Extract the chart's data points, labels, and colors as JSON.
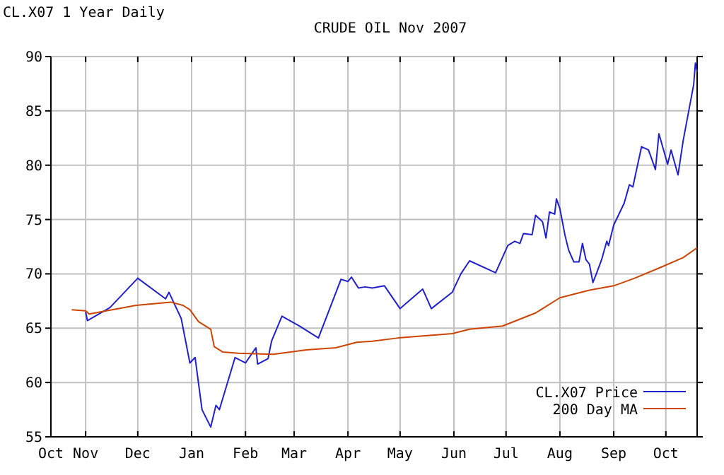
{
  "chart_data": {
    "type": "line",
    "title": "CRUDE OIL Nov 2007",
    "subtitle": "CL.X07 1 Year Daily",
    "xlim": [
      "2006-10-12",
      "2007-10-19"
    ],
    "xticks": [
      {
        "value": "2006-10-12",
        "label": "Oct"
      },
      {
        "value": "2006-11-01",
        "label": "Nov"
      },
      {
        "value": "2006-12-01",
        "label": "Dec"
      },
      {
        "value": "2007-01-01",
        "label": "Jan"
      },
      {
        "value": "2007-02-01",
        "label": "Feb"
      },
      {
        "value": "2007-03-01",
        "label": "Mar"
      },
      {
        "value": "2007-04-01",
        "label": "Apr"
      },
      {
        "value": "2007-05-01",
        "label": "May"
      },
      {
        "value": "2007-06-01",
        "label": "Jun"
      },
      {
        "value": "2007-07-01",
        "label": "Jul"
      },
      {
        "value": "2007-08-01",
        "label": "Aug"
      },
      {
        "value": "2007-09-01",
        "label": "Sep"
      },
      {
        "value": "2007-10-01",
        "label": "Oct"
      }
    ],
    "ylim": [
      55,
      90
    ],
    "yticks": [
      55,
      60,
      65,
      70,
      75,
      80,
      85,
      90
    ],
    "grid": true,
    "legend": "bottom right",
    "marker": "none",
    "line_style": "solid",
    "series": [
      {
        "name": "CL.X07 Price",
        "color": "#2020cc",
        "x": [
          "2006-11-01",
          "2006-11-02",
          "2006-11-15",
          "2006-12-01",
          "2006-12-17",
          "2006-12-19",
          "2006-12-21",
          "2006-12-26",
          "2006-12-31",
          "2007-01-03",
          "2007-01-07",
          "2007-01-12",
          "2007-01-15",
          "2007-01-17",
          "2007-01-26",
          "2007-02-01",
          "2007-02-07",
          "2007-02-08",
          "2007-02-14",
          "2007-02-16",
          "2007-02-22",
          "2007-03-04",
          "2007-03-15",
          "2007-03-28",
          "2007-04-01",
          "2007-04-03",
          "2007-04-07",
          "2007-04-11",
          "2007-04-15",
          "2007-04-22",
          "2007-05-01",
          "2007-05-14",
          "2007-05-19",
          "2007-05-31",
          "2007-06-05",
          "2007-06-10",
          "2007-06-25",
          "2007-07-02",
          "2007-07-06",
          "2007-07-09",
          "2007-07-11",
          "2007-07-16",
          "2007-07-18",
          "2007-07-22",
          "2007-07-24",
          "2007-07-26",
          "2007-07-29",
          "2007-07-30",
          "2007-08-01",
          "2007-08-04",
          "2007-08-06",
          "2007-08-09",
          "2007-08-12",
          "2007-08-14",
          "2007-08-16",
          "2007-08-18",
          "2007-08-20",
          "2007-08-22",
          "2007-08-25",
          "2007-08-28",
          "2007-08-29",
          "2007-09-01",
          "2007-09-07",
          "2007-09-10",
          "2007-09-12",
          "2007-09-17",
          "2007-09-21",
          "2007-09-25",
          "2007-09-27",
          "2007-10-02",
          "2007-10-04",
          "2007-10-08",
          "2007-10-11",
          "2007-10-15",
          "2007-10-17",
          "2007-10-18",
          "2007-10-19"
        ],
        "values": [
          66.5,
          65.7,
          66.9,
          69.6,
          67.7,
          68.3,
          67.6,
          65.9,
          61.8,
          62.3,
          57.5,
          55.9,
          57.9,
          57.5,
          62.3,
          61.8,
          63.2,
          61.7,
          62.2,
          63.8,
          66.1,
          65.2,
          64.1,
          69.5,
          69.3,
          69.7,
          68.7,
          68.8,
          68.7,
          68.9,
          66.8,
          68.6,
          66.8,
          68.3,
          70.0,
          71.2,
          70.1,
          72.6,
          73.0,
          72.8,
          73.7,
          73.6,
          75.4,
          74.8,
          73.3,
          75.7,
          75.5,
          76.9,
          76.0,
          73.5,
          72.2,
          71.1,
          71.1,
          72.8,
          71.3,
          70.9,
          69.2,
          70.0,
          71.3,
          73.0,
          72.6,
          74.5,
          76.5,
          78.2,
          78.0,
          81.7,
          81.4,
          79.6,
          82.9,
          80.1,
          81.4,
          79.1,
          82.3,
          85.7,
          87.4,
          89.4,
          88.6
        ]
      },
      {
        "name": "200 Day MA",
        "color": "#cc4400",
        "x": [
          "2006-10-24",
          "2006-11-01",
          "2006-11-03",
          "2006-11-30",
          "2006-12-20",
          "2006-12-27",
          "2006-12-31",
          "2007-01-05",
          "2007-01-12",
          "2007-01-14",
          "2007-01-19",
          "2007-01-28",
          "2007-02-17",
          "2007-03-08",
          "2007-03-25",
          "2007-04-06",
          "2007-04-15",
          "2007-04-30",
          "2007-05-31",
          "2007-06-10",
          "2007-06-29",
          "2007-07-18",
          "2007-08-01",
          "2007-08-18",
          "2007-09-01",
          "2007-09-13",
          "2007-09-28",
          "2007-10-11",
          "2007-10-19"
        ],
        "values": [
          66.7,
          66.6,
          66.3,
          67.1,
          67.4,
          67.1,
          66.7,
          65.6,
          64.9,
          63.3,
          62.8,
          62.7,
          62.6,
          63.0,
          63.2,
          63.7,
          63.8,
          64.1,
          64.5,
          64.9,
          65.2,
          66.4,
          67.8,
          68.5,
          68.9,
          69.6,
          70.6,
          71.5,
          72.4
        ]
      }
    ]
  }
}
